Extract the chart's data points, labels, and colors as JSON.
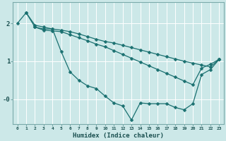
{
  "xlabel": "Humidex (Indice chaleur)",
  "bg_color": "#cce8e8",
  "grid_color": "#ffffff",
  "line_color": "#1a7070",
  "xlim": [
    -0.5,
    23.5
  ],
  "ylim": [
    -0.65,
    2.55
  ],
  "ytick_vals": [
    0,
    1,
    2
  ],
  "ytick_labels": [
    "-0",
    "1",
    "2"
  ],
  "line_steep_x": [
    0,
    1,
    2,
    3,
    4,
    5,
    6,
    7,
    8,
    9,
    10,
    11,
    12,
    13,
    14,
    15,
    16,
    17,
    18,
    19,
    20,
    21,
    22,
    23
  ],
  "line_steep_y": [
    2.0,
    2.28,
    1.9,
    1.85,
    1.85,
    1.25,
    0.72,
    0.5,
    0.35,
    0.28,
    0.08,
    -0.1,
    -0.18,
    -0.55,
    -0.1,
    -0.12,
    -0.12,
    -0.12,
    -0.22,
    -0.28,
    -0.12,
    0.65,
    0.78,
    1.05
  ],
  "line_top_x": [
    1,
    2,
    3,
    4,
    5,
    6,
    7,
    8,
    9,
    10,
    11,
    12,
    13,
    14,
    15,
    16,
    17,
    18,
    19,
    20,
    21,
    22,
    23
  ],
  "line_top_y": [
    2.28,
    1.95,
    1.9,
    1.85,
    1.82,
    1.78,
    1.72,
    1.65,
    1.58,
    1.52,
    1.48,
    1.42,
    1.36,
    1.3,
    1.24,
    1.18,
    1.12,
    1.06,
    1.0,
    0.95,
    0.9,
    0.85,
    1.05
  ],
  "line_mid_x": [
    2,
    3,
    4,
    5,
    6,
    7,
    8,
    9,
    10,
    11,
    12,
    13,
    14,
    15,
    16,
    17,
    18,
    19,
    20,
    21,
    22,
    23
  ],
  "line_mid_y": [
    1.9,
    1.82,
    1.8,
    1.78,
    1.7,
    1.62,
    1.54,
    1.45,
    1.38,
    1.28,
    1.18,
    1.08,
    0.98,
    0.88,
    0.78,
    0.68,
    0.58,
    0.48,
    0.38,
    0.82,
    0.92,
    1.05
  ]
}
